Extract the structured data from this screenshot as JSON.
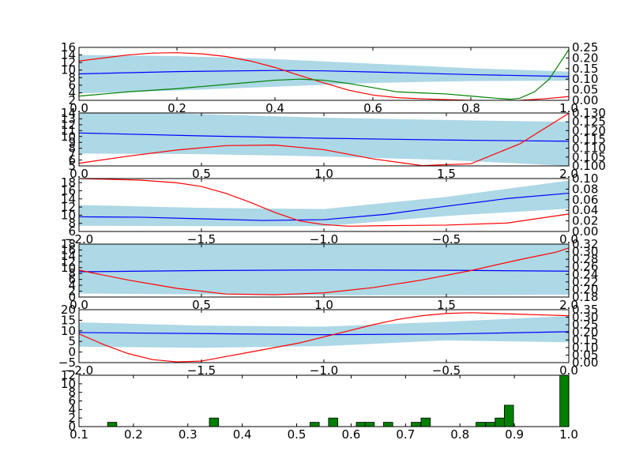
{
  "chart_data": [
    {
      "type": "line",
      "xlim": [
        0,
        1
      ],
      "ylim": [
        2,
        16
      ],
      "y2lim": [
        0,
        0.25
      ],
      "xticks": [
        "0.0",
        "0.2",
        "0.4",
        "0.6",
        "0.8",
        "1.0"
      ],
      "yticks": [
        "2",
        "4",
        "6",
        "8",
        "10",
        "12",
        "14",
        "16"
      ],
      "y2ticks": [
        "0.00",
        "0.05",
        "0.10",
        "0.15",
        "0.20",
        "0.25"
      ],
      "band": {
        "x": [
          0,
          0.2,
          0.4,
          0.6,
          0.8,
          1.0
        ],
        "upper": [
          14.0,
          13.7,
          12.9,
          11.7,
          10.5,
          9.6
        ],
        "lower": [
          3.8,
          4.6,
          5.6,
          6.6,
          7.1,
          7.2
        ]
      },
      "series": [
        {
          "color": "#0000ff",
          "axis": "left",
          "x": [
            0,
            0.2,
            0.4,
            0.5,
            0.6,
            0.8,
            1.0
          ],
          "y": [
            9.0,
            9.6,
            9.9,
            9.8,
            9.5,
            8.8,
            8.3
          ]
        },
        {
          "color": "#ff0000",
          "axis": "left",
          "x": [
            0,
            0.05,
            0.1,
            0.15,
            0.2,
            0.25,
            0.3,
            0.35,
            0.4,
            0.45,
            0.5,
            0.55,
            0.6,
            0.65,
            0.7,
            0.75,
            0.8,
            0.85,
            0.9,
            0.95,
            1.0
          ],
          "y": [
            12.4,
            13.2,
            14.0,
            14.5,
            14.6,
            14.3,
            13.6,
            12.4,
            10.7,
            8.6,
            6.6,
            4.7,
            3.4,
            2.7,
            2.4,
            2.2,
            2.0,
            1.9,
            2.0,
            2.4,
            3.0
          ]
        },
        {
          "color": "#008000",
          "axis": "right",
          "x": [
            0,
            0.1,
            0.2,
            0.3,
            0.4,
            0.45,
            0.5,
            0.55,
            0.6,
            0.65,
            0.7,
            0.75,
            0.8,
            0.85,
            0.88,
            0.9,
            0.93,
            0.96,
            1.0
          ],
          "y": [
            0.02,
            0.04,
            0.055,
            0.075,
            0.095,
            0.1,
            0.095,
            0.08,
            0.06,
            0.04,
            0.035,
            0.03,
            0.02,
            0.01,
            0.005,
            0.01,
            0.04,
            0.1,
            0.24
          ]
        }
      ]
    },
    {
      "type": "line",
      "xlim": [
        0,
        2
      ],
      "ylim": [
        5,
        14
      ],
      "y2lim": [
        0.1,
        0.13
      ],
      "xticks": [
        "0.0",
        "0.5",
        "1.0",
        "1.5",
        "2.0"
      ],
      "yticks": [
        "5",
        "6",
        "7",
        "8",
        "9",
        "10",
        "11",
        "12",
        "13",
        "14"
      ],
      "y2ticks": [
        "0.100",
        "0.105",
        "0.110",
        "0.115",
        "0.120",
        "0.125",
        "0.130"
      ],
      "band": {
        "x": [
          0,
          0.5,
          1.0,
          1.5,
          2.0
        ],
        "upper": [
          14.2,
          13.8,
          13.2,
          12.8,
          12.5
        ],
        "lower": [
          7.1,
          7.0,
          6.6,
          6.0,
          5.0
        ]
      },
      "series": [
        {
          "color": "#0000ff",
          "axis": "left",
          "x": [
            0,
            0.5,
            1.0,
            1.5,
            2.0
          ],
          "y": [
            10.6,
            10.1,
            9.7,
            9.4,
            9.2
          ]
        },
        {
          "color": "#ff0000",
          "axis": "right",
          "x": [
            0,
            0.2,
            0.4,
            0.6,
            0.8,
            1.0,
            1.2,
            1.4,
            1.6,
            1.8,
            2.0
          ],
          "y": [
            0.1015,
            0.1055,
            0.109,
            0.1115,
            0.1118,
            0.1092,
            0.104,
            0.1002,
            0.1012,
            0.1125,
            0.1298
          ]
        }
      ]
    },
    {
      "type": "line",
      "xlim": [
        -2,
        0
      ],
      "ylim": [
        6,
        19
      ],
      "y2lim": [
        0,
        0.1
      ],
      "xticks": [
        "−2.0",
        "−1.5",
        "−1.0",
        "−0.5",
        "0.0"
      ],
      "yticks": [
        "6",
        "8",
        "10",
        "12",
        "14",
        "16",
        "18"
      ],
      "y2ticks": [
        "0.00",
        "0.02",
        "0.04",
        "0.06",
        "0.08",
        "0.10"
      ],
      "band": {
        "x": [
          -2.0,
          -1.5,
          -1.0,
          -0.5,
          0.0
        ],
        "upper": [
          12.5,
          11.8,
          11.5,
          14.5,
          18.5
        ],
        "lower": [
          7.4,
          7.3,
          7.3,
          9.8,
          11.6
        ]
      },
      "series": [
        {
          "color": "#0000ff",
          "axis": "left",
          "x": [
            -2.0,
            -1.75,
            -1.5,
            -1.25,
            -1.0,
            -0.75,
            -0.5,
            -0.25,
            0.0
          ],
          "y": [
            9.6,
            9.5,
            9.1,
            8.7,
            8.9,
            10.2,
            12.2,
            14.1,
            15.4
          ]
        },
        {
          "color": "#ff0000",
          "axis": "right",
          "x": [
            -2.0,
            -1.75,
            -1.6,
            -1.5,
            -1.4,
            -1.3,
            -1.2,
            -1.1,
            -1.0,
            -0.9,
            -0.75,
            -0.5,
            -0.25,
            0.0
          ],
          "y": [
            0.1,
            0.097,
            0.092,
            0.085,
            0.072,
            0.055,
            0.036,
            0.02,
            0.013,
            0.01,
            0.011,
            0.012,
            0.016,
            0.033
          ]
        }
      ]
    },
    {
      "type": "line",
      "xlim": [
        0,
        2
      ],
      "ylim": [
        0,
        18
      ],
      "y2lim": [
        0.18,
        0.32
      ],
      "xticks": [
        "0.0",
        "0.5",
        "1.0",
        "1.5",
        "2.0"
      ],
      "yticks": [
        "0",
        "2",
        "4",
        "6",
        "8",
        "10",
        "12",
        "14",
        "16",
        "18"
      ],
      "y2ticks": [
        "0.18",
        "0.20",
        "0.22",
        "0.24",
        "0.26",
        "0.28",
        "0.30",
        "0.32"
      ],
      "band": {
        "x": [
          0,
          0.5,
          1.0,
          1.5,
          2.0
        ],
        "upper": [
          18.5,
          18.5,
          18.5,
          18.5,
          18.5
        ],
        "lower": [
          1.2,
          0.9,
          0.6,
          0.6,
          0.8
        ]
      },
      "series": [
        {
          "color": "#0000ff",
          "axis": "left",
          "x": [
            0,
            0.5,
            1.0,
            1.5,
            2.0
          ],
          "y": [
            8.6,
            9.0,
            9.2,
            9.1,
            8.8
          ]
        },
        {
          "color": "#ff0000",
          "axis": "right",
          "x": [
            0,
            0.2,
            0.4,
            0.6,
            0.8,
            1.0,
            1.2,
            1.4,
            1.6,
            1.8,
            1.95,
            2.0
          ],
          "y": [
            0.251,
            0.225,
            0.203,
            0.188,
            0.186,
            0.191,
            0.205,
            0.225,
            0.25,
            0.279,
            0.299,
            0.31
          ]
        }
      ]
    },
    {
      "type": "line",
      "xlim": [
        -2,
        0
      ],
      "ylim": [
        -5,
        20
      ],
      "y2lim": [
        0,
        0.35
      ],
      "xticks": [
        "−2.0",
        "−1.5",
        "−1.0",
        "−0.5",
        "0.0"
      ],
      "yticks": [
        "−5",
        "0",
        "5",
        "10",
        "15",
        "20"
      ],
      "y2ticks": [
        "0.00",
        "0.05",
        "0.10",
        "0.15",
        "0.20",
        "0.25",
        "0.30",
        "0.35"
      ],
      "band": {
        "x": [
          -2.0,
          -1.5,
          -1.0,
          -0.5,
          0.0
        ],
        "upper": [
          14.0,
          12.5,
          12.0,
          14.3,
          17.0
        ],
        "lower": [
          2.5,
          2.0,
          2.8,
          5.5,
          4.6
        ]
      },
      "series": [
        {
          "color": "#0000ff",
          "axis": "left",
          "x": [
            -2.0,
            -1.5,
            -1.0,
            -0.5,
            0.0
          ],
          "y": [
            9.2,
            8.7,
            8.2,
            8.5,
            9.6
          ]
        },
        {
          "color": "#ff0000",
          "axis": "right",
          "x": [
            -2.0,
            -1.9,
            -1.8,
            -1.7,
            -1.6,
            -1.5,
            -1.4,
            -1.3,
            -1.2,
            -1.1,
            -1.0,
            -0.9,
            -0.8,
            -0.7,
            -0.6,
            -0.5,
            -0.4,
            -0.3,
            -0.2,
            -0.1,
            0.0
          ],
          "y": [
            0.19,
            0.12,
            0.06,
            0.02,
            0.005,
            0.01,
            0.04,
            0.07,
            0.1,
            0.13,
            0.17,
            0.21,
            0.25,
            0.285,
            0.31,
            0.325,
            0.33,
            0.325,
            0.32,
            0.315,
            0.31
          ]
        }
      ]
    },
    {
      "type": "bar",
      "xlim": [
        0.1,
        1.0
      ],
      "ylim": [
        0,
        12
      ],
      "xticks": [
        "0.1",
        "0.2",
        "0.3",
        "0.4",
        "0.5",
        "0.6",
        "0.7",
        "0.8",
        "0.9",
        "1.0"
      ],
      "yticks": [
        "0",
        "2",
        "4",
        "6",
        "8",
        "10",
        "12"
      ],
      "bar_width": 0.017,
      "color": "#008000",
      "x": [
        0.161,
        0.348,
        0.533,
        0.567,
        0.618,
        0.634,
        0.668,
        0.719,
        0.737,
        0.838,
        0.856,
        0.873,
        0.89,
        0.992
      ],
      "values": [
        1,
        2,
        1,
        2,
        1,
        1,
        1,
        1,
        2,
        1,
        1,
        2,
        5,
        12
      ]
    }
  ]
}
